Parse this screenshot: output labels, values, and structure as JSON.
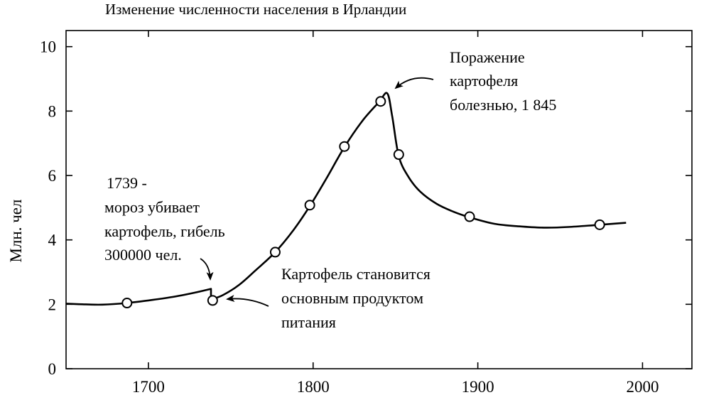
{
  "chart_data": {
    "type": "line",
    "title": "Изменение численности населения в Ирландии",
    "xlabel": "",
    "ylabel": "Млн. чел",
    "xlim": [
      1650,
      2030
    ],
    "ylim": [
      0,
      10.5
    ],
    "x_ticks": [
      1700,
      1800,
      1900,
      2000
    ],
    "y_ticks": [
      0,
      2,
      4,
      6,
      8,
      10
    ],
    "grid": false,
    "curve": [
      [
        1650,
        2.02
      ],
      [
        1660,
        2.0
      ],
      [
        1672,
        1.99
      ],
      [
        1687,
        2.04
      ],
      [
        1700,
        2.12
      ],
      [
        1715,
        2.23
      ],
      [
        1728,
        2.36
      ],
      [
        1738,
        2.48
      ],
      [
        1738,
        2.15
      ],
      [
        1745,
        2.28
      ],
      [
        1755,
        2.6
      ],
      [
        1765,
        3.05
      ],
      [
        1777,
        3.62
      ],
      [
        1788,
        4.3
      ],
      [
        1798,
        5.05
      ],
      [
        1808,
        5.9
      ],
      [
        1819,
        6.88
      ],
      [
        1830,
        7.7
      ],
      [
        1840,
        8.28
      ],
      [
        1845,
        8.55
      ],
      [
        1848,
        7.85
      ],
      [
        1852,
        6.6
      ],
      [
        1858,
        5.95
      ],
      [
        1865,
        5.5
      ],
      [
        1875,
        5.12
      ],
      [
        1885,
        4.88
      ],
      [
        1895,
        4.7
      ],
      [
        1910,
        4.5
      ],
      [
        1925,
        4.42
      ],
      [
        1940,
        4.38
      ],
      [
        1955,
        4.4
      ],
      [
        1974,
        4.47
      ],
      [
        1990,
        4.53
      ]
    ],
    "points": [
      {
        "x": 1687,
        "y": 2.04
      },
      {
        "x": 1739,
        "y": 2.12
      },
      {
        "x": 1777,
        "y": 3.62
      },
      {
        "x": 1798,
        "y": 5.08
      },
      {
        "x": 1819,
        "y": 6.9
      },
      {
        "x": 1841,
        "y": 8.3
      },
      {
        "x": 1852,
        "y": 6.65
      },
      {
        "x": 1895,
        "y": 4.72
      },
      {
        "x": 1974,
        "y": 4.47
      }
    ],
    "annotations": [
      {
        "lines": [
          "1739 -",
          "мороз убивает",
          "картофель, гибель",
          "300000 чел."
        ]
      },
      {
        "lines": [
          "Картофель становится",
          "основным продуктом",
          "питания"
        ]
      },
      {
        "lines": [
          "Поражение",
          "картофеля",
          "болезнью, 1 845"
        ]
      }
    ]
  }
}
